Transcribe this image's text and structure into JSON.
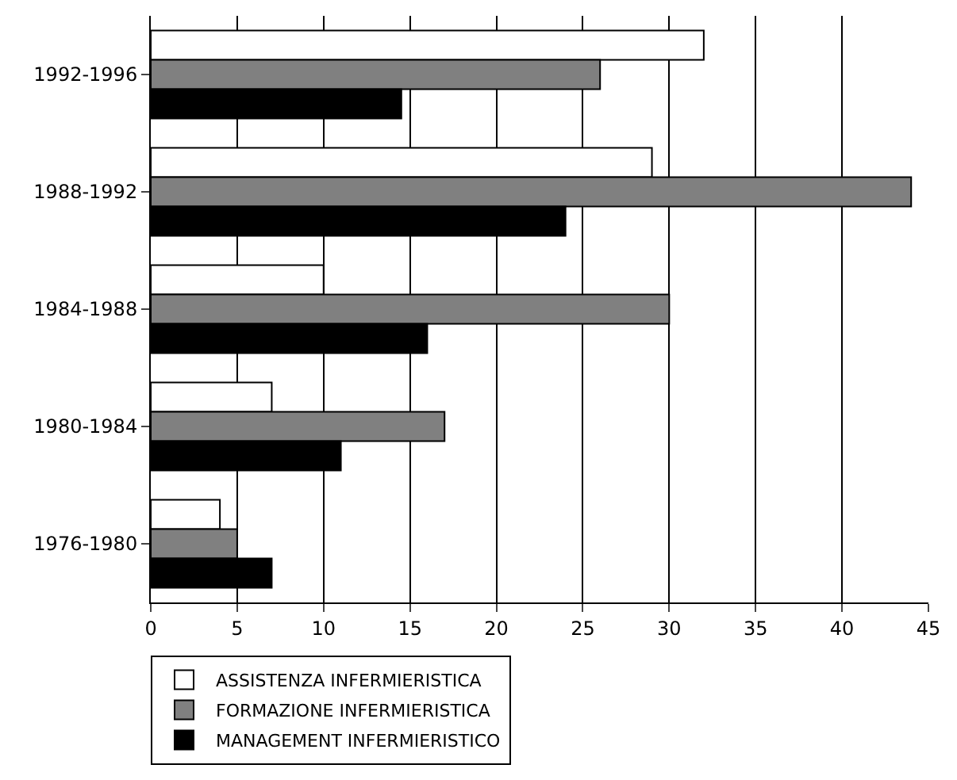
{
  "chart_data": {
    "type": "bar",
    "orientation": "horizontal",
    "categories": [
      "1992-1996",
      "1988-1992",
      "1984-1988",
      "1980-1984",
      "1976-1980"
    ],
    "series": [
      {
        "name": "ASSISTENZA INFERMIERISTICA",
        "color": "#ffffff",
        "values": [
          32,
          29,
          10,
          7,
          4
        ]
      },
      {
        "name": "FORMAZIONE INFERMIERISTICA",
        "color": "#808080",
        "values": [
          26,
          44,
          30,
          17,
          5
        ]
      },
      {
        "name": "MANAGEMENT INFERMIERISTICO",
        "color": "#000000",
        "values": [
          14.5,
          24,
          16,
          11,
          7
        ]
      }
    ],
    "xlim": [
      0,
      45
    ],
    "xticks": [
      0,
      5,
      10,
      15,
      20,
      25,
      30,
      35,
      40,
      45
    ],
    "grid": "x",
    "legend": "bottom"
  }
}
